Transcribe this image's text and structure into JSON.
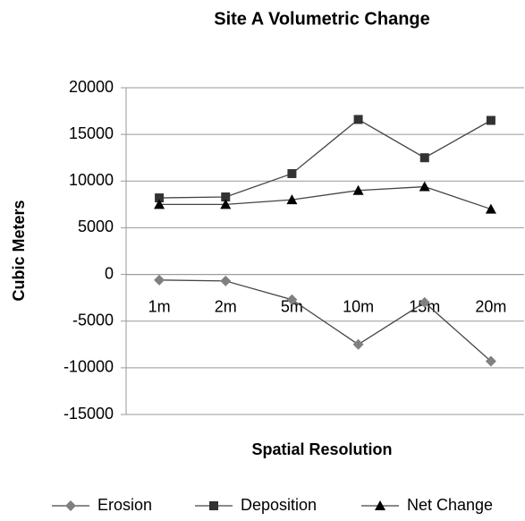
{
  "chart_data": {
    "type": "line",
    "title": "Site A Volumetric Change",
    "x_label": "Spatial Resolution",
    "y_label": "Cubic Meters",
    "categories": [
      "1m",
      "2m",
      "5m",
      "10m",
      "15m",
      "20m"
    ],
    "series": [
      {
        "name": "Erosion",
        "color": "#808080",
        "marker": "diamond",
        "values": [
          -600,
          -700,
          -2700,
          -7500,
          -3000,
          -9300
        ]
      },
      {
        "name": "Deposition",
        "color": "#333333",
        "marker": "square",
        "values": [
          8200,
          8300,
          10800,
          16600,
          12500,
          16500
        ]
      },
      {
        "name": "Net Change",
        "color": "#000000",
        "marker": "triangle",
        "values": [
          7500,
          7500,
          8000,
          9000,
          9400,
          7000
        ]
      }
    ],
    "ylim": [
      -15000,
      20000
    ],
    "yticks": [
      -15000,
      -10000,
      -5000,
      0,
      5000,
      10000,
      15000,
      20000
    ],
    "grid": true,
    "legend": "bottom"
  }
}
